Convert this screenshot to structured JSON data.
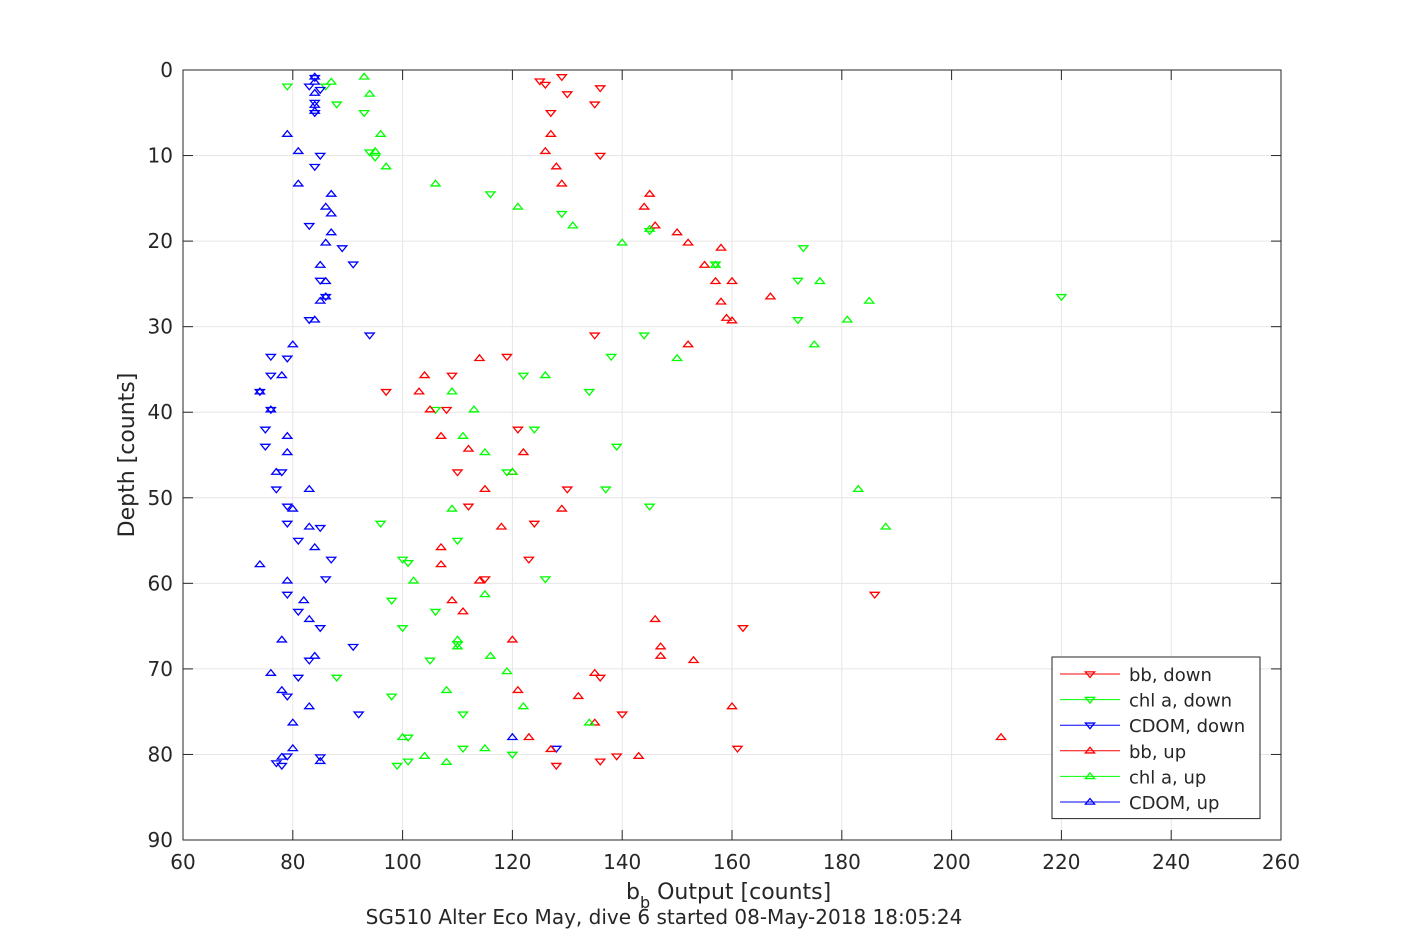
{
  "chart_data": {
    "type": "scatter",
    "xlabel_main": "b",
    "xlabel_sub": "b",
    "xlabel_rest": " Output [counts]",
    "ylabel": "Depth [counts]",
    "subtitle": "SG510 Alter Eco May, dive 6 started 08-May-2018 18:05:24",
    "xlim": [
      60,
      260
    ],
    "ylim": [
      0,
      90
    ],
    "y_reversed": true,
    "grid": true,
    "xticks": [
      "60",
      "80",
      "100",
      "120",
      "140",
      "160",
      "180",
      "200",
      "220",
      "240",
      "260"
    ],
    "yticks": [
      "0",
      "10",
      "20",
      "30",
      "40",
      "50",
      "60",
      "70",
      "80",
      "90"
    ],
    "legend_position": "bottom-right",
    "series": [
      {
        "name": "bb, down",
        "marker": "triangle-down",
        "color": "#ff0000",
        "points": [
          [
            129,
            0.8
          ],
          [
            125,
            1.3
          ],
          [
            126,
            1.7
          ],
          [
            136,
            2.1
          ],
          [
            130,
            2.8
          ],
          [
            135,
            4
          ],
          [
            127,
            5
          ],
          [
            136,
            10
          ],
          [
            135,
            31
          ],
          [
            119,
            33.5
          ],
          [
            109,
            35.7
          ],
          [
            97,
            37.6
          ],
          [
            108,
            39.7
          ],
          [
            121,
            42
          ],
          [
            110,
            47
          ],
          [
            130,
            49
          ],
          [
            112,
            51
          ],
          [
            124,
            53
          ],
          [
            123,
            57.2
          ],
          [
            115,
            59.5
          ],
          [
            186,
            61.3
          ],
          [
            162,
            65.2
          ],
          [
            136,
            71
          ],
          [
            140,
            75.3
          ],
          [
            161,
            79.3
          ],
          [
            139,
            80.2
          ],
          [
            136,
            80.8
          ],
          [
            128,
            81.3
          ]
        ]
      },
      {
        "name": "chl a, down",
        "marker": "triangle-down",
        "color": "#00ff00",
        "points": [
          [
            79,
            1.9
          ],
          [
            86,
            1.9
          ],
          [
            88,
            4
          ],
          [
            93,
            5
          ],
          [
            94,
            9.6
          ],
          [
            95,
            10.2
          ],
          [
            116,
            14.5
          ],
          [
            129,
            16.8
          ],
          [
            145,
            18.8
          ],
          [
            173,
            20.8
          ],
          [
            157,
            22.7
          ],
          [
            172,
            24.6
          ],
          [
            220,
            26.5
          ],
          [
            172,
            29.2
          ],
          [
            144,
            31
          ],
          [
            138,
            33.5
          ],
          [
            122,
            35.7
          ],
          [
            134,
            37.6
          ],
          [
            106,
            39.7
          ],
          [
            124,
            42
          ],
          [
            139,
            44
          ],
          [
            119,
            47
          ],
          [
            137,
            49
          ],
          [
            145,
            51
          ],
          [
            96,
            53
          ],
          [
            110,
            55
          ],
          [
            100,
            57.2
          ],
          [
            101,
            57.6
          ],
          [
            126,
            59.5
          ],
          [
            98,
            62
          ],
          [
            106,
            63.3
          ],
          [
            100,
            65.2
          ],
          [
            110,
            67.1
          ],
          [
            105,
            69
          ],
          [
            88,
            71
          ],
          [
            98,
            73.2
          ],
          [
            111,
            75.3
          ],
          [
            101,
            78
          ],
          [
            111,
            79.3
          ],
          [
            120,
            80
          ],
          [
            101,
            80.8
          ],
          [
            99,
            81.3
          ]
        ]
      },
      {
        "name": "CDOM, down",
        "marker": "triangle-down",
        "color": "#0000ff",
        "points": [
          [
            84,
            0.9
          ],
          [
            83,
            1.9
          ],
          [
            85,
            2.3
          ],
          [
            84,
            3.8
          ],
          [
            84,
            5
          ],
          [
            85,
            10
          ],
          [
            84,
            11.3
          ],
          [
            83,
            18.2
          ],
          [
            89,
            20.8
          ],
          [
            91,
            22.7
          ],
          [
            85,
            24.6
          ],
          [
            86,
            26.5
          ],
          [
            83,
            29.2
          ],
          [
            94,
            31
          ],
          [
            76,
            33.5
          ],
          [
            79,
            33.7
          ],
          [
            76,
            35.7
          ],
          [
            74,
            37.6
          ],
          [
            76,
            39.7
          ],
          [
            75,
            42
          ],
          [
            75,
            44
          ],
          [
            78,
            47
          ],
          [
            77,
            49
          ],
          [
            79,
            51
          ],
          [
            79,
            53
          ],
          [
            85,
            53.5
          ],
          [
            81,
            55
          ],
          [
            87,
            57.2
          ],
          [
            86,
            59.5
          ],
          [
            79,
            61.3
          ],
          [
            81,
            63.3
          ],
          [
            85,
            65.2
          ],
          [
            91,
            67.4
          ],
          [
            83,
            69
          ],
          [
            81,
            71
          ],
          [
            79,
            73.2
          ],
          [
            92,
            75.3
          ],
          [
            128,
            79.3
          ],
          [
            79,
            80.2
          ],
          [
            85,
            80.3
          ],
          [
            77,
            81
          ],
          [
            78,
            81.3
          ]
        ]
      },
      {
        "name": "bb, up",
        "marker": "triangle-up",
        "color": "#ff0000",
        "points": [
          [
            127,
            7.5
          ],
          [
            126,
            9.5
          ],
          [
            128,
            11.3
          ],
          [
            129,
            13.3
          ],
          [
            145,
            14.5
          ],
          [
            144,
            16
          ],
          [
            146,
            18.2
          ],
          [
            150,
            19
          ],
          [
            152,
            20.2
          ],
          [
            158,
            20.8
          ],
          [
            155,
            22.8
          ],
          [
            157,
            24.7
          ],
          [
            160,
            24.7
          ],
          [
            167,
            26.5
          ],
          [
            158,
            27.1
          ],
          [
            159,
            29
          ],
          [
            160,
            29.3
          ],
          [
            152,
            32.1
          ],
          [
            114,
            33.7
          ],
          [
            104,
            35.7
          ],
          [
            103,
            37.6
          ],
          [
            105,
            39.7
          ],
          [
            107,
            42.8
          ],
          [
            112,
            44.3
          ],
          [
            122,
            44.7
          ],
          [
            120,
            47
          ],
          [
            115,
            49
          ],
          [
            129,
            51.3
          ],
          [
            118,
            53.4
          ],
          [
            107,
            55.8
          ],
          [
            107,
            57.8
          ],
          [
            114,
            59.7
          ],
          [
            109,
            62
          ],
          [
            111,
            63.3
          ],
          [
            146,
            64.2
          ],
          [
            120,
            66.6
          ],
          [
            147,
            67.4
          ],
          [
            147,
            68.5
          ],
          [
            153,
            69
          ],
          [
            135,
            70.5
          ],
          [
            121,
            72.5
          ],
          [
            132,
            73.2
          ],
          [
            160,
            74.4
          ],
          [
            135,
            76.3
          ],
          [
            209,
            78
          ],
          [
            123,
            78
          ],
          [
            127,
            79.4
          ],
          [
            143,
            80.2
          ]
        ]
      },
      {
        "name": "chl a, up",
        "marker": "triangle-up",
        "color": "#00ff00",
        "points": [
          [
            93,
            0.8
          ],
          [
            87,
            1.4
          ],
          [
            94,
            2.8
          ],
          [
            96,
            7.5
          ],
          [
            95,
            9.5
          ],
          [
            97,
            11.3
          ],
          [
            106,
            13.3
          ],
          [
            121,
            16
          ],
          [
            131,
            18.2
          ],
          [
            140,
            20.2
          ],
          [
            145,
            18.6
          ],
          [
            157,
            22.8
          ],
          [
            176,
            24.7
          ],
          [
            185,
            27
          ],
          [
            181,
            29.2
          ],
          [
            175,
            32.1
          ],
          [
            150,
            33.7
          ],
          [
            126,
            35.7
          ],
          [
            109,
            37.6
          ],
          [
            113,
            39.7
          ],
          [
            111,
            42.8
          ],
          [
            115,
            44.7
          ],
          [
            120,
            47
          ],
          [
            183,
            49
          ],
          [
            109,
            51.3
          ],
          [
            188,
            53.4
          ],
          [
            102,
            59.7
          ],
          [
            115,
            61.3
          ],
          [
            110,
            66.6
          ],
          [
            110,
            67.4
          ],
          [
            116,
            68.5
          ],
          [
            119,
            70.3
          ],
          [
            108,
            72.5
          ],
          [
            122,
            74.4
          ],
          [
            134,
            76.3
          ],
          [
            100,
            78
          ],
          [
            104,
            80.2
          ],
          [
            108,
            80.9
          ],
          [
            115,
            79.3
          ]
        ]
      },
      {
        "name": "CDOM, up",
        "marker": "triangle-up",
        "color": "#0000ff",
        "points": [
          [
            84,
            0.8
          ],
          [
            84,
            1.4
          ],
          [
            84,
            2.7
          ],
          [
            84,
            4.1
          ],
          [
            84,
            4.8
          ],
          [
            79,
            7.5
          ],
          [
            81,
            9.5
          ],
          [
            81,
            13.3
          ],
          [
            87,
            14.5
          ],
          [
            86,
            16
          ],
          [
            87,
            16.8
          ],
          [
            87,
            19
          ],
          [
            86,
            20.2
          ],
          [
            85,
            22.8
          ],
          [
            86,
            24.7
          ],
          [
            86,
            26.5
          ],
          [
            85,
            27
          ],
          [
            84,
            29.2
          ],
          [
            80,
            32.1
          ],
          [
            78,
            35.7
          ],
          [
            74,
            37.6
          ],
          [
            76,
            39.7
          ],
          [
            79,
            42.8
          ],
          [
            79,
            44.7
          ],
          [
            77,
            47
          ],
          [
            83,
            49
          ],
          [
            80,
            51.3
          ],
          [
            83,
            53.4
          ],
          [
            84,
            55.8
          ],
          [
            74,
            57.8
          ],
          [
            79,
            59.7
          ],
          [
            82,
            62
          ],
          [
            83,
            64.2
          ],
          [
            78,
            66.6
          ],
          [
            84,
            68.5
          ],
          [
            76,
            70.5
          ],
          [
            78,
            72.5
          ],
          [
            83,
            74.4
          ],
          [
            80,
            76.3
          ],
          [
            120,
            78
          ],
          [
            80,
            79.3
          ],
          [
            78,
            80.3
          ],
          [
            85,
            80.8
          ]
        ]
      }
    ]
  }
}
